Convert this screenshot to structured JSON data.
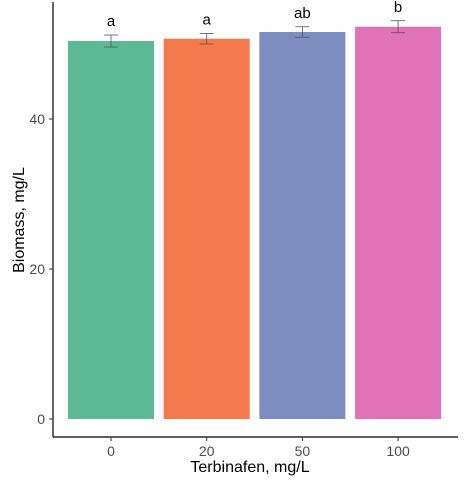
{
  "chart_data": {
    "type": "bar",
    "title": "",
    "xlabel": "Terbinafen, mg/L",
    "ylabel": "Biomass, mg/L",
    "categories": [
      "0",
      "20",
      "50",
      "100"
    ],
    "values": [
      50.4,
      50.7,
      51.6,
      52.3
    ],
    "errors": [
      0.8,
      0.7,
      0.7,
      0.8
    ],
    "significance": [
      "a",
      "a",
      "ab",
      "b"
    ],
    "colors": [
      "#5bb995",
      "#f47a4e",
      "#7b8cbe",
      "#e072b5"
    ],
    "ylim": [
      0,
      56
    ],
    "yticks": [
      0,
      20,
      40
    ],
    "grid": false,
    "legend": "none"
  }
}
